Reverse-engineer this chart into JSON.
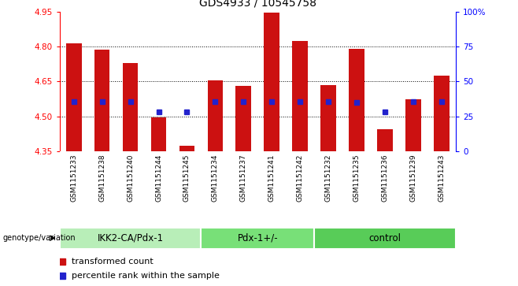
{
  "title": "GDS4933 / 10545758",
  "samples": [
    "GSM1151233",
    "GSM1151238",
    "GSM1151240",
    "GSM1151244",
    "GSM1151245",
    "GSM1151234",
    "GSM1151237",
    "GSM1151241",
    "GSM1151242",
    "GSM1151232",
    "GSM1151235",
    "GSM1151236",
    "GSM1151239",
    "GSM1151243"
  ],
  "bar_values": [
    4.815,
    4.785,
    4.73,
    4.495,
    4.375,
    4.655,
    4.63,
    4.945,
    4.825,
    4.635,
    4.79,
    4.445,
    4.575,
    4.675
  ],
  "blue_values": [
    4.565,
    4.565,
    4.565,
    4.52,
    4.52,
    4.565,
    4.565,
    4.565,
    4.565,
    4.565,
    4.56,
    4.52,
    4.565,
    4.565
  ],
  "groups": [
    {
      "name": "IKK2-CA/Pdx-1",
      "count": 5,
      "color": "#b8eeb8"
    },
    {
      "name": "Pdx-1+/-",
      "count": 4,
      "color": "#78e078"
    },
    {
      "name": "control",
      "count": 5,
      "color": "#58cc58"
    }
  ],
  "ymin": 4.35,
  "ymax": 4.95,
  "yticks": [
    4.35,
    4.5,
    4.65,
    4.8,
    4.95
  ],
  "y2ticks": [
    0,
    25,
    50,
    75,
    100
  ],
  "bar_color": "#cc1111",
  "blue_color": "#2222cc",
  "bar_width": 0.55,
  "plot_bg_color": "#ffffff",
  "label_fontsize": 6.5,
  "title_fontsize": 10,
  "tick_fontsize": 7.5,
  "group_fontsize": 8.5,
  "legend_fontsize": 8
}
